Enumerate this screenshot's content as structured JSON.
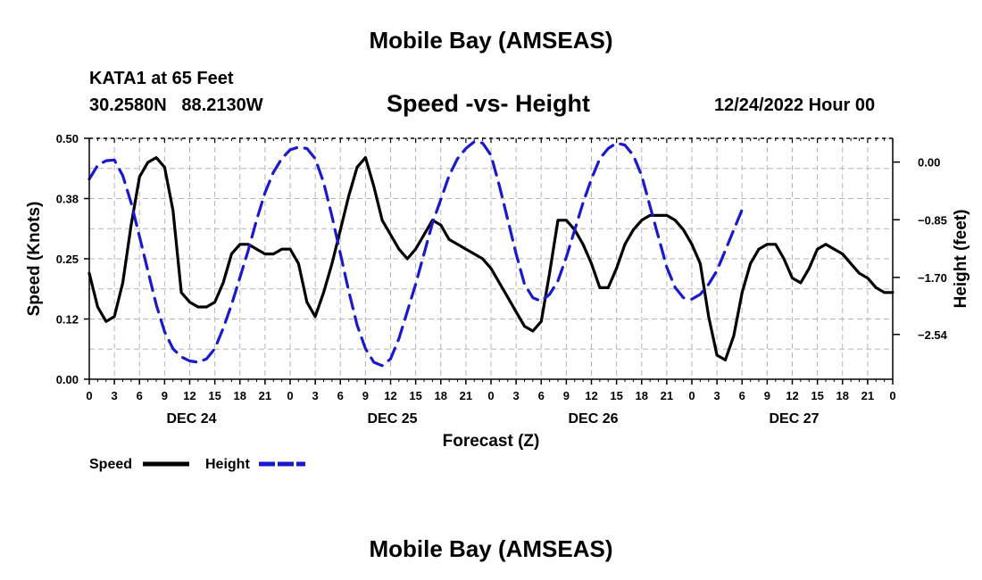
{
  "page": {
    "title": "Mobile Bay (AMSEAS)",
    "station": "KATA1 at 65 Feet",
    "coords": "30.2580N   88.2130W",
    "subtitle": "Speed -vs- Height",
    "datetime": "12/24/2022 Hour 00",
    "bottom_title": "Mobile Bay (AMSEAS)"
  },
  "chart_data": {
    "type": "line",
    "title": "Speed -vs- Height",
    "xlabel": "Forecast (Z)",
    "ylabel": "Speed (Knots)",
    "y2label": "Height (feet)",
    "x_range": [
      0,
      96
    ],
    "ylim": [
      0,
      0.5
    ],
    "y2lim": [
      -3.2,
      0.35
    ],
    "y_ticks": [
      {
        "value": 0.0,
        "label": "0.00"
      },
      {
        "value": 0.125,
        "label": "0.12"
      },
      {
        "value": 0.25,
        "label": "0.25"
      },
      {
        "value": 0.375,
        "label": "0.38"
      },
      {
        "value": 0.5,
        "label": "0.50"
      }
    ],
    "y2_ticks": [
      {
        "value": 0.0,
        "label": "0.00"
      },
      {
        "value": -0.85,
        "label": "−0.85"
      },
      {
        "value": -1.7,
        "label": "−1.70"
      },
      {
        "value": -2.54,
        "label": "−2.54"
      }
    ],
    "x_ticks": [
      {
        "value": 0,
        "label": "0"
      },
      {
        "value": 3,
        "label": "3"
      },
      {
        "value": 6,
        "label": "6"
      },
      {
        "value": 9,
        "label": "9"
      },
      {
        "value": 12,
        "label": "12"
      },
      {
        "value": 15,
        "label": "15"
      },
      {
        "value": 18,
        "label": "18"
      },
      {
        "value": 21,
        "label": "21"
      },
      {
        "value": 24,
        "label": "0"
      },
      {
        "value": 27,
        "label": "3"
      },
      {
        "value": 30,
        "label": "6"
      },
      {
        "value": 33,
        "label": "9"
      },
      {
        "value": 36,
        "label": "12"
      },
      {
        "value": 39,
        "label": "15"
      },
      {
        "value": 42,
        "label": "18"
      },
      {
        "value": 45,
        "label": "21"
      },
      {
        "value": 48,
        "label": "0"
      },
      {
        "value": 51,
        "label": "3"
      },
      {
        "value": 54,
        "label": "6"
      },
      {
        "value": 57,
        "label": "9"
      },
      {
        "value": 60,
        "label": "12"
      },
      {
        "value": 63,
        "label": "15"
      },
      {
        "value": 66,
        "label": "18"
      },
      {
        "value": 69,
        "label": "21"
      },
      {
        "value": 72,
        "label": "0"
      },
      {
        "value": 75,
        "label": "3"
      },
      {
        "value": 78,
        "label": "6"
      },
      {
        "value": 81,
        "label": "9"
      },
      {
        "value": 84,
        "label": "12"
      },
      {
        "value": 87,
        "label": "15"
      },
      {
        "value": 90,
        "label": "18"
      },
      {
        "value": 93,
        "label": "21"
      },
      {
        "value": 96,
        "label": "0"
      }
    ],
    "day_labels": [
      {
        "value": 12,
        "label": "DEC 24"
      },
      {
        "value": 36,
        "label": "DEC 25"
      },
      {
        "value": 60,
        "label": "DEC 26"
      },
      {
        "value": 84,
        "label": "DEC 27"
      }
    ],
    "grid": true,
    "legend": [
      {
        "name": "Speed",
        "color": "#000000",
        "style": "solid"
      },
      {
        "name": "Height",
        "color": "#1a1acc",
        "style": "dashed"
      }
    ],
    "series": [
      {
        "name": "Speed",
        "axis": "left",
        "color": "#000000",
        "points": [
          [
            0,
            0.22
          ],
          [
            1,
            0.15
          ],
          [
            2,
            0.12
          ],
          [
            3,
            0.13
          ],
          [
            4,
            0.2
          ],
          [
            5,
            0.32
          ],
          [
            6,
            0.42
          ],
          [
            7,
            0.45
          ],
          [
            8,
            0.46
          ],
          [
            9,
            0.44
          ],
          [
            10,
            0.35
          ],
          [
            11,
            0.18
          ],
          [
            12,
            0.16
          ],
          [
            13,
            0.15
          ],
          [
            14,
            0.15
          ],
          [
            15,
            0.16
          ],
          [
            16,
            0.2
          ],
          [
            17,
            0.26
          ],
          [
            18,
            0.28
          ],
          [
            19,
            0.28
          ],
          [
            20,
            0.27
          ],
          [
            21,
            0.26
          ],
          [
            22,
            0.26
          ],
          [
            23,
            0.27
          ],
          [
            24,
            0.27
          ],
          [
            25,
            0.24
          ],
          [
            26,
            0.16
          ],
          [
            27,
            0.13
          ],
          [
            28,
            0.18
          ],
          [
            29,
            0.24
          ],
          [
            30,
            0.31
          ],
          [
            31,
            0.38
          ],
          [
            32,
            0.44
          ],
          [
            33,
            0.46
          ],
          [
            34,
            0.4
          ],
          [
            35,
            0.33
          ],
          [
            36,
            0.3
          ],
          [
            37,
            0.27
          ],
          [
            38,
            0.25
          ],
          [
            39,
            0.27
          ],
          [
            40,
            0.3
          ],
          [
            41,
            0.33
          ],
          [
            42,
            0.32
          ],
          [
            43,
            0.29
          ],
          [
            44,
            0.28
          ],
          [
            45,
            0.27
          ],
          [
            46,
            0.26
          ],
          [
            47,
            0.25
          ],
          [
            48,
            0.23
          ],
          [
            49,
            0.2
          ],
          [
            50,
            0.17
          ],
          [
            51,
            0.14
          ],
          [
            52,
            0.11
          ],
          [
            53,
            0.1
          ],
          [
            54,
            0.12
          ],
          [
            55,
            0.22
          ],
          [
            56,
            0.33
          ],
          [
            57,
            0.33
          ],
          [
            58,
            0.31
          ],
          [
            59,
            0.28
          ],
          [
            60,
            0.24
          ],
          [
            61,
            0.19
          ],
          [
            62,
            0.19
          ],
          [
            63,
            0.23
          ],
          [
            64,
            0.28
          ],
          [
            65,
            0.31
          ],
          [
            66,
            0.33
          ],
          [
            67,
            0.34
          ],
          [
            68,
            0.34
          ],
          [
            69,
            0.34
          ],
          [
            70,
            0.33
          ],
          [
            71,
            0.31
          ],
          [
            72,
            0.28
          ],
          [
            73,
            0.24
          ],
          [
            74,
            0.13
          ],
          [
            75,
            0.05
          ],
          [
            76,
            0.04
          ],
          [
            77,
            0.09
          ],
          [
            78,
            0.18
          ],
          [
            79,
            0.24
          ],
          [
            80,
            0.27
          ],
          [
            81,
            0.28
          ],
          [
            82,
            0.28
          ],
          [
            83,
            0.25
          ],
          [
            84,
            0.21
          ],
          [
            85,
            0.2
          ],
          [
            86,
            0.23
          ],
          [
            87,
            0.27
          ],
          [
            88,
            0.28
          ],
          [
            89,
            0.27
          ],
          [
            90,
            0.26
          ],
          [
            91,
            0.24
          ],
          [
            92,
            0.22
          ],
          [
            93,
            0.21
          ],
          [
            94,
            0.19
          ],
          [
            95,
            0.18
          ],
          [
            96,
            0.18
          ]
        ]
      },
      {
        "name": "Height",
        "axis": "right",
        "color": "#1a1acc",
        "points": [
          [
            0,
            -0.25
          ],
          [
            1,
            -0.05
          ],
          [
            2,
            0.02
          ],
          [
            3,
            0.03
          ],
          [
            4,
            -0.2
          ],
          [
            5,
            -0.6
          ],
          [
            6,
            -1.1
          ],
          [
            7,
            -1.6
          ],
          [
            8,
            -2.1
          ],
          [
            9,
            -2.5
          ],
          [
            10,
            -2.75
          ],
          [
            11,
            -2.87
          ],
          [
            12,
            -2.93
          ],
          [
            13,
            -2.95
          ],
          [
            14,
            -2.9
          ],
          [
            15,
            -2.75
          ],
          [
            16,
            -2.45
          ],
          [
            17,
            -2.1
          ],
          [
            18,
            -1.7
          ],
          [
            19,
            -1.3
          ],
          [
            20,
            -0.85
          ],
          [
            21,
            -0.45
          ],
          [
            22,
            -0.15
          ],
          [
            23,
            0.05
          ],
          [
            24,
            0.18
          ],
          [
            25,
            0.22
          ],
          [
            26,
            0.2
          ],
          [
            27,
            0.05
          ],
          [
            28,
            -0.3
          ],
          [
            29,
            -0.8
          ],
          [
            30,
            -1.35
          ],
          [
            31,
            -1.9
          ],
          [
            32,
            -2.4
          ],
          [
            33,
            -2.75
          ],
          [
            34,
            -2.95
          ],
          [
            35,
            -3.0
          ],
          [
            36,
            -2.9
          ],
          [
            37,
            -2.6
          ],
          [
            38,
            -2.2
          ],
          [
            39,
            -1.8
          ],
          [
            40,
            -1.35
          ],
          [
            41,
            -0.9
          ],
          [
            42,
            -0.55
          ],
          [
            43,
            -0.2
          ],
          [
            44,
            0.05
          ],
          [
            45,
            0.2
          ],
          [
            46,
            0.3
          ],
          [
            47,
            0.28
          ],
          [
            48,
            0.1
          ],
          [
            49,
            -0.35
          ],
          [
            50,
            -0.85
          ],
          [
            51,
            -1.35
          ],
          [
            52,
            -1.8
          ],
          [
            53,
            -2.0
          ],
          [
            54,
            -2.05
          ],
          [
            55,
            -1.95
          ],
          [
            56,
            -1.75
          ],
          [
            57,
            -1.4
          ],
          [
            58,
            -1.0
          ],
          [
            59,
            -0.6
          ],
          [
            60,
            -0.25
          ],
          [
            61,
            0.05
          ],
          [
            62,
            0.2
          ],
          [
            63,
            0.28
          ],
          [
            64,
            0.25
          ],
          [
            65,
            0.1
          ],
          [
            66,
            -0.2
          ],
          [
            67,
            -0.65
          ],
          [
            68,
            -1.1
          ],
          [
            69,
            -1.55
          ],
          [
            70,
            -1.85
          ],
          [
            71,
            -2.0
          ],
          [
            72,
            -2.02
          ],
          [
            73,
            -1.95
          ],
          [
            74,
            -1.8
          ],
          [
            75,
            -1.6
          ],
          [
            76,
            -1.3
          ],
          [
            77,
            -1.0
          ],
          [
            78,
            -0.7
          ]
        ]
      }
    ]
  }
}
